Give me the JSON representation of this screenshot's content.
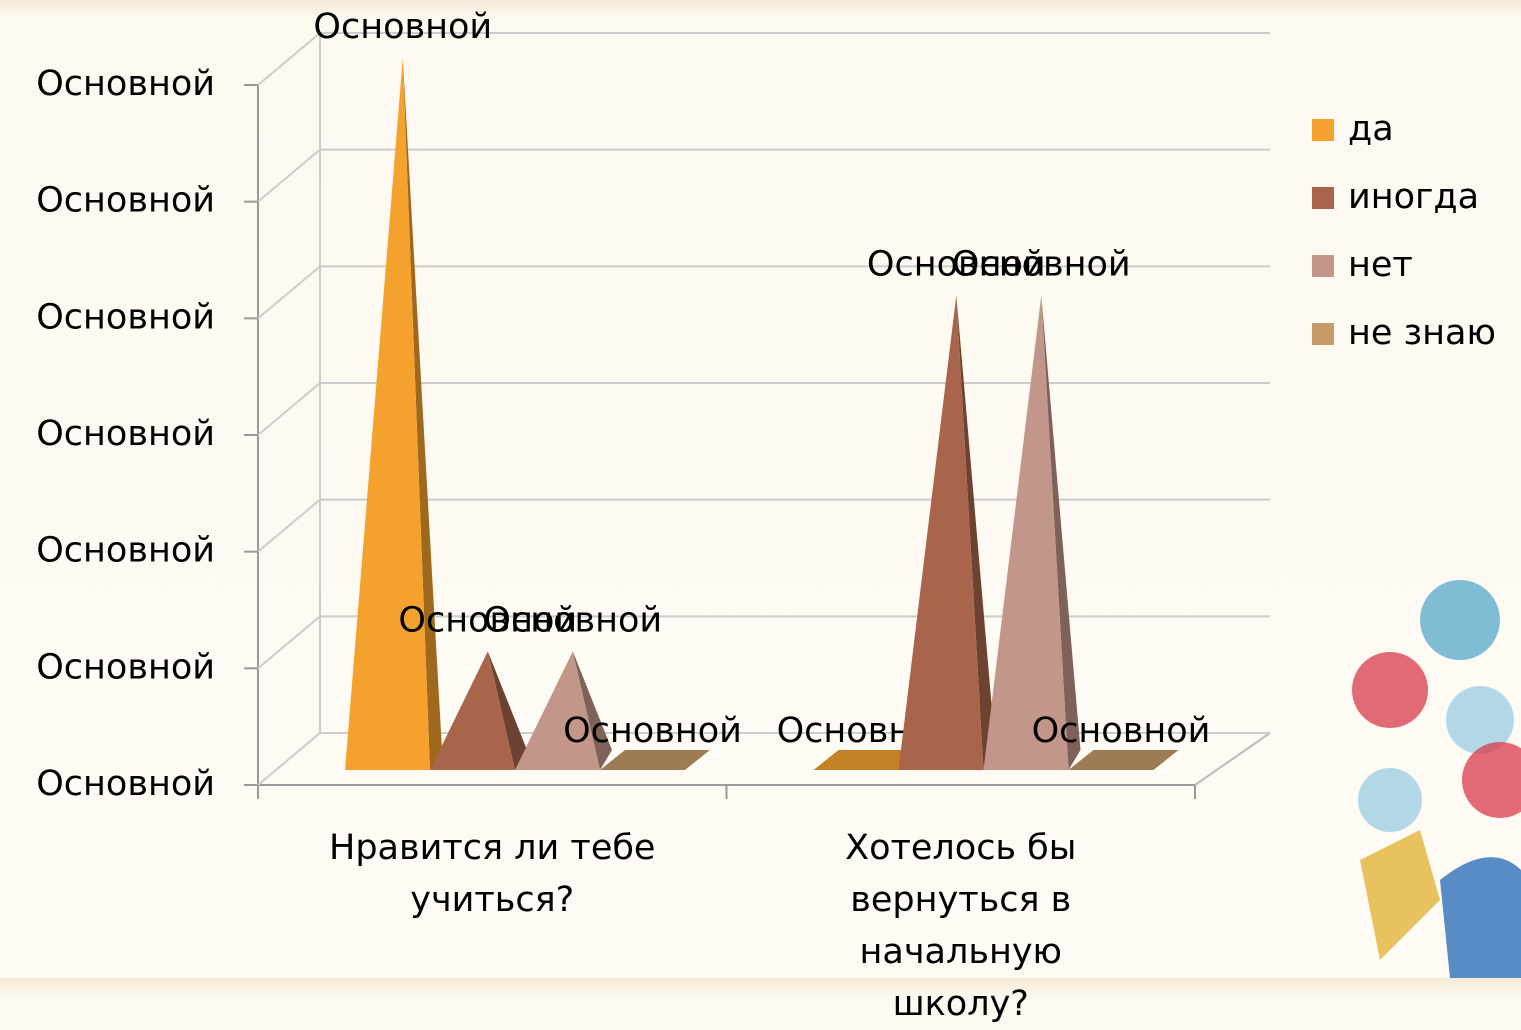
{
  "chart_data": {
    "type": "pyramid3d",
    "categories": [
      "Нравится ли тебе учиться?",
      "Хотелось бы вернуться в начальную школу?"
    ],
    "series": [
      {
        "name": "да",
        "color": "#f4a22d",
        "values": [
          60,
          0
        ],
        "value_labels": [
          "Основной",
          "Основной"
        ]
      },
      {
        "name": "иногда",
        "color": "#a8654b",
        "values": [
          10,
          40
        ],
        "value_labels": [
          "Основной",
          "Основной"
        ]
      },
      {
        "name": "нет",
        "color": "#c29689",
        "values": [
          10,
          40
        ],
        "value_labels": [
          "Основной",
          "Основной"
        ]
      },
      {
        "name": "не знаю",
        "color": "#c49a69",
        "values": [
          0,
          0
        ],
        "value_labels": [
          "Основной",
          "Основной"
        ]
      }
    ],
    "ylim": [
      0,
      60
    ],
    "yticks": [
      {
        "value": 0,
        "label": "Основной"
      },
      {
        "value": 10,
        "label": "Основной"
      },
      {
        "value": 20,
        "label": "Основной"
      },
      {
        "value": 30,
        "label": "Основной"
      },
      {
        "value": 40,
        "label": "Основной"
      },
      {
        "value": 50,
        "label": "Основной"
      },
      {
        "value": 60,
        "label": "Основной"
      }
    ],
    "grid": true,
    "legend": "right"
  }
}
